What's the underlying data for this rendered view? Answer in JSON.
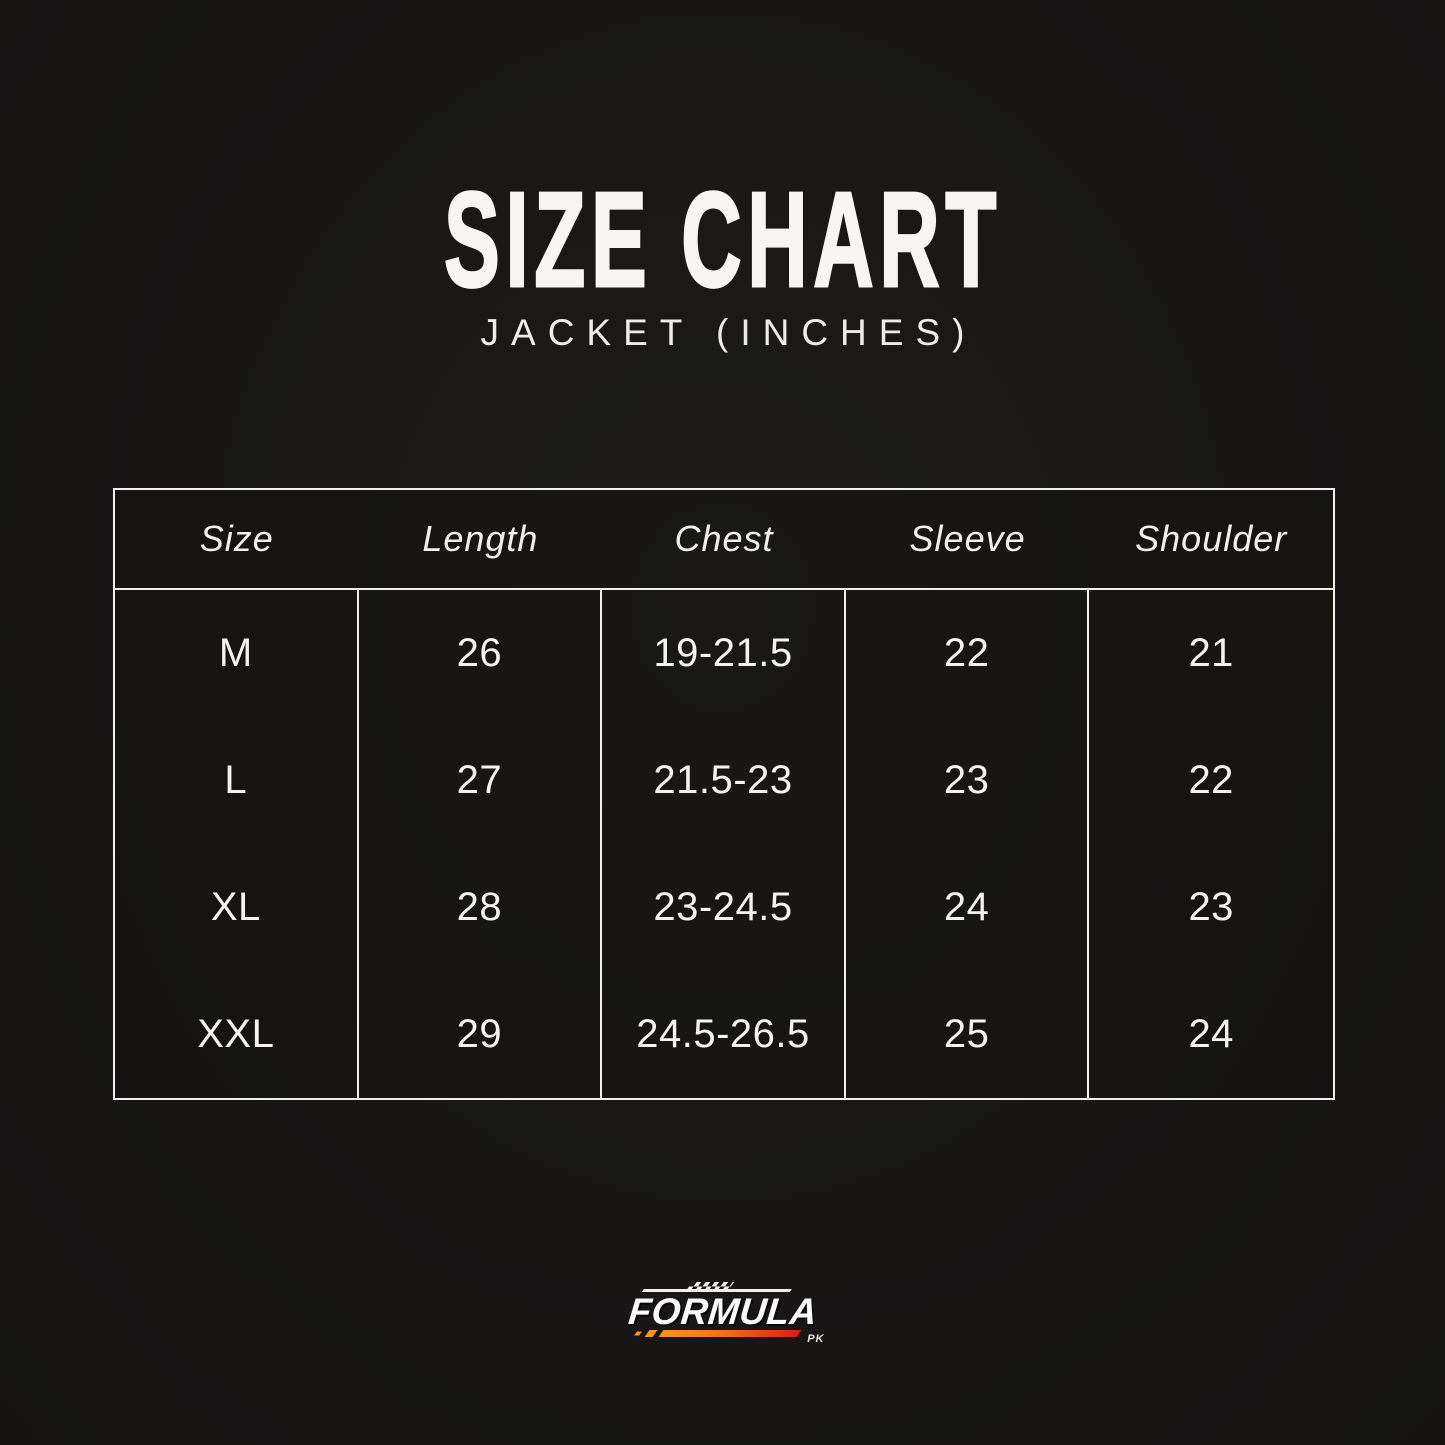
{
  "page": {
    "title": "SIZE CHART",
    "subtitle": "JACKET (INCHES)"
  },
  "table": {
    "columns": [
      "Size",
      "Length",
      "Chest",
      "Sleeve",
      "Shoulder"
    ],
    "rows": [
      [
        "M",
        "26",
        "19-21.5",
        "22",
        "21"
      ],
      [
        "L",
        "27",
        "21.5-23",
        "23",
        "22"
      ],
      [
        "XL",
        "28",
        "23-24.5",
        "24",
        "23"
      ],
      [
        "XXL",
        "29",
        "24.5-26.5",
        "25",
        "24"
      ]
    ]
  },
  "logo": {
    "brand": "FORMULA",
    "region": "PK"
  },
  "colors": {
    "background": "#181716",
    "border": "#f2f1ee",
    "text": "#f5f3ef",
    "logo_orange": "#f7941e",
    "logo_red": "#dd1f10"
  }
}
